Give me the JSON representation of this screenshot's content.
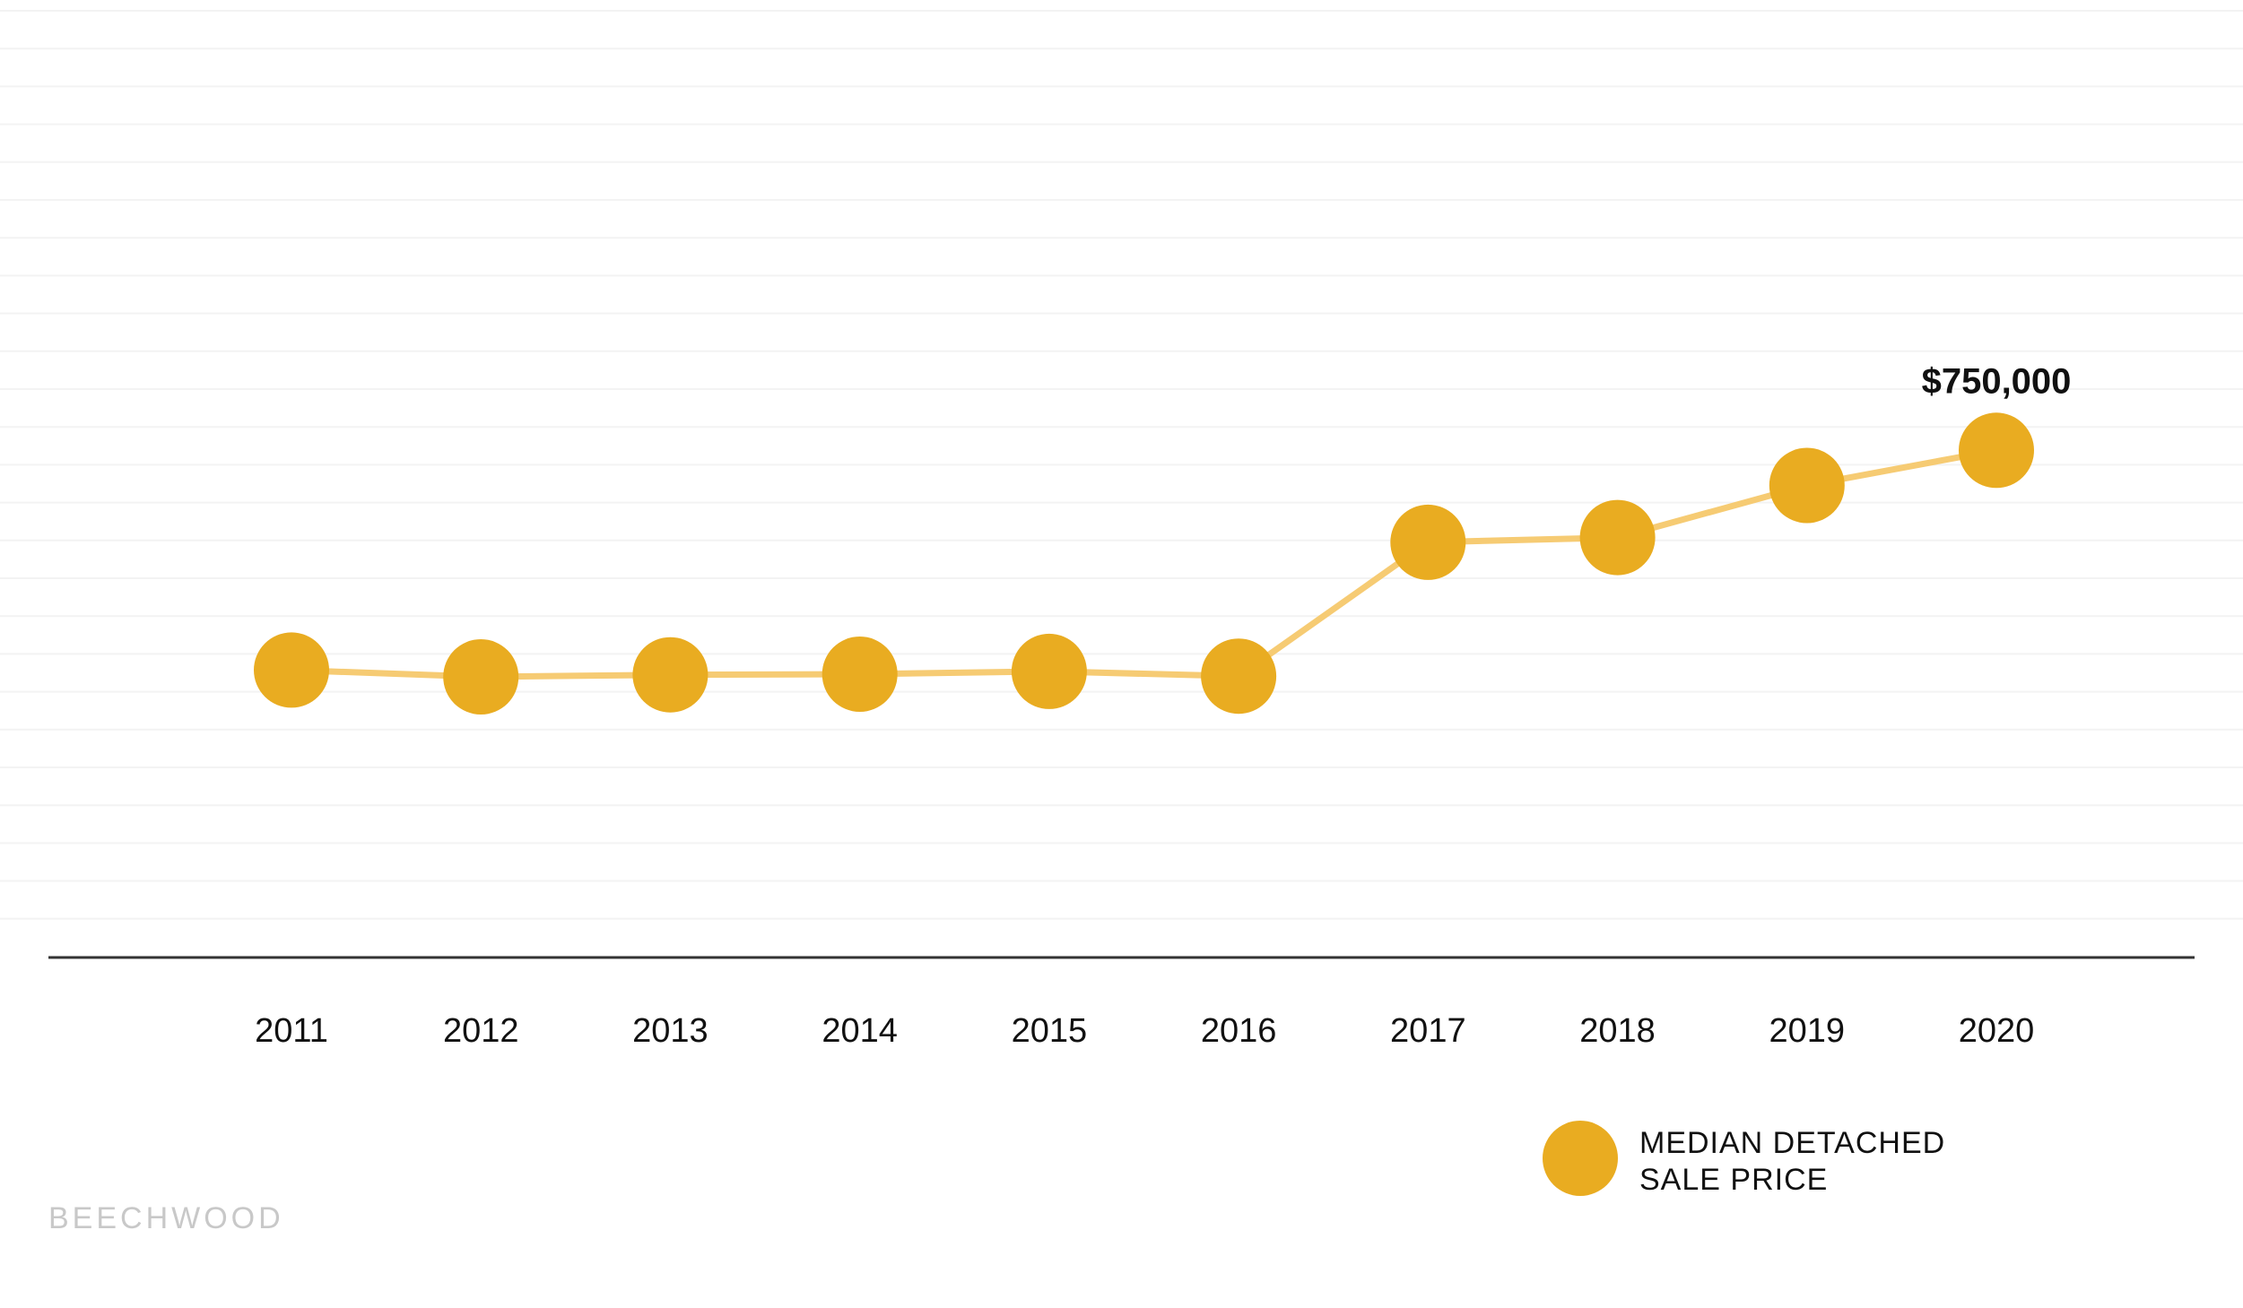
{
  "chart_data": {
    "type": "line",
    "categories": [
      "2011",
      "2012",
      "2013",
      "2014",
      "2015",
      "2016",
      "2017",
      "2018",
      "2019",
      "2020"
    ],
    "series": [
      {
        "name": "MEDIAN DETACHED SALE PRICE",
        "values": [
          425000,
          415000,
          418000,
          419000,
          423000,
          416000,
          614000,
          621000,
          698000,
          750000
        ]
      }
    ],
    "ylim": [
      0,
      1400000
    ],
    "grid": true,
    "annotations": [
      {
        "category": "2020",
        "text": "$750,000"
      }
    ],
    "legend": {
      "position": "bottom-right",
      "lines": [
        "MEDIAN DETACHED",
        "SALE PRICE"
      ]
    },
    "colors": {
      "point": "#E9AC21",
      "line": "#F6CB73",
      "axis": "#333333",
      "grid": "#F3F3F3"
    }
  },
  "brand": "BEECHWOOD"
}
